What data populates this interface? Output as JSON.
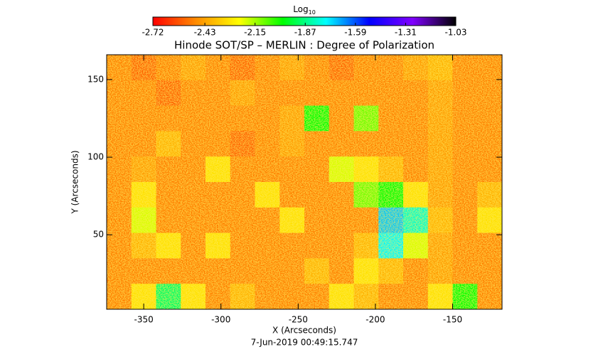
{
  "chart_data": {
    "type": "heatmap",
    "title": "Hinode SOT/SP – MERLIN : Degree of Polarization",
    "colorbar_label": "Log",
    "colorbar_label_sub": "10",
    "colorbar_lim": [
      -2.72,
      -1.03
    ],
    "colorbar_ticks": [
      -2.72,
      -2.43,
      -2.15,
      -1.87,
      -1.59,
      -1.31,
      -1.03
    ],
    "colormap": [
      "#ff0000",
      "#ff8c00",
      "#ffff00",
      "#00ff00",
      "#00ffff",
      "#0000ff",
      "#8000ff",
      "#000000"
    ],
    "x_label": "X (Arcseconds)",
    "y_label": "Y (Arcseconds)",
    "date": "7-Jun-2019 00:49:15.747",
    "xlim": [
      -374,
      -118
    ],
    "ylim": [
      2,
      166
    ],
    "xticks": [
      -350,
      -300,
      -250,
      -200,
      -150
    ],
    "yticks": [
      50,
      100,
      150
    ],
    "z": [
      [
        -2.5,
        -2.55,
        -2.5,
        -2.45,
        -2.5,
        -2.55,
        -2.5,
        -2.45,
        -2.5,
        -2.55,
        -2.5,
        -2.5,
        -2.45,
        -2.4,
        -2.5,
        -2.5
      ],
      [
        -2.5,
        -2.5,
        -2.55,
        -2.5,
        -2.5,
        -2.45,
        -2.5,
        -2.5,
        -2.5,
        -2.5,
        -2.5,
        -2.5,
        -2.5,
        -2.45,
        -2.5,
        -2.5
      ],
      [
        -2.5,
        -2.5,
        -2.5,
        -2.5,
        -2.5,
        -2.5,
        -2.5,
        -2.45,
        -2.0,
        -2.5,
        -2.1,
        -2.5,
        -2.5,
        -2.45,
        -2.5,
        -2.5
      ],
      [
        -2.5,
        -2.5,
        -2.4,
        -2.5,
        -2.5,
        -2.55,
        -2.5,
        -2.45,
        -2.5,
        -2.5,
        -2.5,
        -2.5,
        -2.5,
        -2.45,
        -2.5,
        -2.5
      ],
      [
        -2.5,
        -2.45,
        -2.5,
        -2.5,
        -2.3,
        -2.5,
        -2.5,
        -2.5,
        -2.5,
        -2.2,
        -2.3,
        -2.4,
        -2.5,
        -2.45,
        -2.5,
        -2.5
      ],
      [
        -2.5,
        -2.3,
        -2.5,
        -2.5,
        -2.5,
        -2.5,
        -2.3,
        -2.5,
        -2.5,
        -2.5,
        -2.1,
        -2.0,
        -2.3,
        -2.45,
        -2.5,
        -2.4
      ],
      [
        -2.5,
        -2.2,
        -2.5,
        -2.5,
        -2.5,
        -2.5,
        -2.5,
        -2.3,
        -2.5,
        -2.5,
        -2.5,
        -1.7,
        -1.8,
        -2.4,
        -2.5,
        -2.3
      ],
      [
        -2.5,
        -2.4,
        -2.3,
        -2.5,
        -2.3,
        -2.5,
        -2.5,
        -2.5,
        -2.5,
        -2.5,
        -2.4,
        -1.75,
        -2.2,
        -2.45,
        -2.5,
        -2.5
      ],
      [
        -2.5,
        -2.5,
        -2.5,
        -2.5,
        -2.5,
        -2.5,
        -2.5,
        -2.5,
        -2.4,
        -2.5,
        -2.3,
        -2.4,
        -2.5,
        -2.45,
        -2.5,
        -2.5
      ],
      [
        -2.5,
        -2.3,
        -1.9,
        -2.3,
        -2.5,
        -2.4,
        -2.5,
        -2.5,
        -2.5,
        -2.3,
        -2.4,
        -2.5,
        -2.5,
        -2.3,
        -2.0,
        -2.5
      ]
    ]
  }
}
